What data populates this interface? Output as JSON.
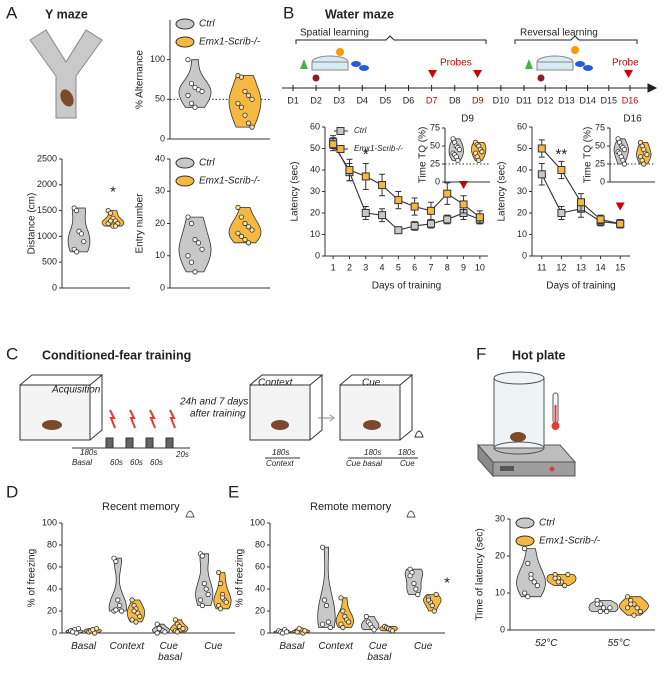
{
  "diagram": {
    "panel_labels": [
      "A",
      "B",
      "C",
      "D",
      "E",
      "F"
    ],
    "titles": {
      "y_maze": "Y maze",
      "water_maze": "Water maze",
      "fear": "Conditioned-fear training",
      "hot_plate": "Hot plate"
    },
    "timeline": {
      "spatial": "Spatial learning",
      "reversal": "Reversal learning",
      "probes": "Probes",
      "probe": "Probe",
      "days": [
        {
          "label": "D1"
        },
        {
          "label": "D2"
        },
        {
          "label": "D3"
        },
        {
          "label": "D4"
        },
        {
          "label": "D5"
        },
        {
          "label": "D6"
        },
        {
          "label": "D7",
          "color": "#d00000"
        },
        {
          "label": "D8"
        },
        {
          "label": "D9",
          "color": "#d00000"
        },
        {
          "label": "D10"
        },
        {
          "label": "D11"
        },
        {
          "label": "D12"
        },
        {
          "label": "D13"
        },
        {
          "label": "D14"
        },
        {
          "label": "D15"
        },
        {
          "label": "D16",
          "color": "#d00000"
        }
      ]
    },
    "fear": {
      "acquisition": "Acquisition",
      "basal_time": "180s",
      "basal": "Basal",
      "intervals": [
        "60s",
        "60s",
        "60s"
      ],
      "end": "20s",
      "delay": [
        "24h and 7 days",
        "after training"
      ],
      "context": "Context",
      "cue": "Cue",
      "context_time": "180s",
      "context_label": "Context",
      "cue_basal_time": "180s",
      "cue_time": "180s",
      "cue_basal": "Cue basal",
      "cue_label": "Cue"
    }
  },
  "chart_data": [
    {
      "type": "violin",
      "y_label": "% Alternance",
      "ylim": [
        0,
        150
      ],
      "yticks": [
        0,
        50,
        100
      ],
      "reference_line": 50,
      "legend": "top-left",
      "series": [
        {
          "name": "Ctrl",
          "color": "#c8c8c8",
          "values": [
            100,
            70,
            65,
            62,
            60,
            55,
            45,
            40
          ]
        },
        {
          "name": "Emx1-Scrib-/-",
          "color": "#f5b942",
          "values": [
            80,
            78,
            60,
            55,
            50,
            45,
            40,
            30,
            20,
            15
          ]
        }
      ]
    },
    {
      "type": "violin",
      "y_label": "Distance (cm)",
      "ylim": [
        0,
        2500
      ],
      "yticks": [
        0,
        500,
        1000,
        1500,
        2000,
        2500
      ],
      "annotations": [
        {
          "text": "*",
          "series": 1,
          "y": 1850
        }
      ],
      "series": [
        {
          "color": "#c8c8c8",
          "values": [
            1550,
            1500,
            1100,
            1050,
            900,
            750,
            700
          ]
        },
        {
          "color": "#f5b942",
          "values": [
            1500,
            1450,
            1350,
            1300,
            1250,
            1250,
            1300,
            1200,
            1200
          ]
        }
      ]
    },
    {
      "type": "violin",
      "y_label": "Entry number",
      "ylim": [
        0,
        40
      ],
      "yticks": [
        0,
        10,
        20,
        30,
        40
      ],
      "legend": "top-left",
      "series": [
        {
          "name": "Ctrl",
          "color": "#c8c8c8",
          "values": [
            22,
            20,
            15,
            14,
            12,
            10,
            8,
            5
          ]
        },
        {
          "name": "Emx1-Scrib-/-",
          "color": "#f5b942",
          "values": [
            25,
            22,
            20,
            19,
            18,
            17,
            16,
            15,
            14
          ]
        }
      ]
    },
    {
      "type": "line",
      "y_label": "Latency (sec)",
      "x_label": "Days of training",
      "x": [
        1,
        2,
        3,
        4,
        5,
        6,
        7,
        8,
        9,
        10
      ],
      "xlim": [
        0.5,
        10.5
      ],
      "xticks": [
        1,
        2,
        3,
        4,
        5,
        6,
        7,
        8,
        9,
        10
      ],
      "ylim": [
        0,
        60
      ],
      "yticks": [
        0,
        10,
        20,
        30,
        40,
        50,
        60
      ],
      "legend": "top-left",
      "annotations": [
        {
          "text": "*",
          "x": 3,
          "y": 47
        }
      ],
      "markers": [
        {
          "x": 9,
          "y": 33,
          "color": "#d00000"
        }
      ],
      "series": [
        {
          "name": "Ctrl",
          "color": "#c8c8c8",
          "values": [
            53,
            39,
            20,
            19,
            12,
            14,
            15,
            17,
            20,
            17
          ],
          "errors": [
            3,
            4,
            3,
            3,
            1,
            2,
            2,
            2,
            3,
            2
          ]
        },
        {
          "name": "Emx1-Scrib-/-",
          "color": "#f5b942",
          "values": [
            52,
            40,
            37,
            33,
            26,
            23,
            21,
            29,
            24,
            18
          ],
          "errors": [
            3,
            5,
            6,
            5,
            4,
            4,
            4,
            5,
            4,
            3
          ]
        }
      ]
    },
    {
      "type": "violin",
      "title": "D9",
      "y_label": "Time TQ (%)",
      "ylim": [
        0,
        75
      ],
      "yticks": [
        0,
        25,
        50,
        75
      ],
      "reference_line": 25,
      "series": [
        {
          "color": "#c8c8c8",
          "values": [
            60,
            55,
            50,
            48,
            45,
            40,
            38,
            35,
            30
          ]
        },
        {
          "color": "#f5b942",
          "values": [
            55,
            52,
            50,
            45,
            42,
            40,
            35,
            30
          ]
        }
      ]
    },
    {
      "type": "line",
      "y_label": "Latency (sec)",
      "x_label": "Days of training",
      "x": [
        11,
        12,
        13,
        14,
        15
      ],
      "xlim": [
        10.5,
        15.5
      ],
      "xticks": [
        11,
        12,
        13,
        14,
        15
      ],
      "ylim": [
        0,
        60
      ],
      "yticks": [
        0,
        10,
        20,
        30,
        40,
        50,
        60
      ],
      "annotations": [
        {
          "text": "**",
          "x": 12,
          "y": 47
        }
      ],
      "markers": [
        {
          "x": 15,
          "y": 23,
          "color": "#d00000"
        }
      ],
      "series": [
        {
          "color": "#c8c8c8",
          "values": [
            38,
            20,
            22,
            16,
            15
          ],
          "errors": [
            5,
            3,
            4,
            2,
            2
          ]
        },
        {
          "color": "#f5b942",
          "values": [
            50,
            40,
            25,
            17,
            15
          ],
          "errors": [
            4,
            4,
            4,
            2,
            2
          ]
        }
      ]
    },
    {
      "type": "violin",
      "title": "D16",
      "y_label": "Time TQ (%)",
      "ylim": [
        0,
        75
      ],
      "yticks": [
        0,
        25,
        50,
        75
      ],
      "reference_line": 25,
      "series": [
        {
          "color": "#c8c8c8",
          "values": [
            60,
            55,
            50,
            48,
            45,
            42,
            40,
            35,
            30,
            25
          ]
        },
        {
          "color": "#f5b942",
          "values": [
            55,
            50,
            45,
            40,
            38,
            35,
            30,
            25
          ]
        }
      ]
    },
    {
      "type": "violin",
      "title": "Recent memory",
      "y_label": "% of freezing",
      "ylim": [
        0,
        100
      ],
      "yticks": [
        0,
        20,
        40,
        60,
        80,
        100
      ],
      "categories": [
        "Basal",
        "Context",
        "Cue basal",
        "Cue"
      ],
      "series": [
        {
          "color": "#c8c8c8",
          "values": [
            [
              2,
              1,
              3,
              0,
              4,
              2,
              1
            ],
            [
              68,
              65,
              30,
              25,
              20,
              20,
              21
            ],
            [
              8,
              5,
              3,
              2,
              1,
              0,
              4
            ],
            [
              72,
              70,
              45,
              40,
              35,
              30,
              25
            ]
          ]
        },
        {
          "color": "#f5b942",
          "values": [
            [
              1,
              2,
              3,
              0,
              4,
              1,
              2,
              3
            ],
            [
              30,
              25,
              22,
              18,
              15,
              12,
              20,
              10
            ],
            [
              12,
              8,
              5,
              3,
              4,
              2,
              1,
              6
            ],
            [
              55,
              45,
              35,
              30,
              28,
              25,
              22,
              32
            ]
          ]
        }
      ]
    },
    {
      "type": "violin",
      "title": "Remote memory",
      "y_label": "% of freezing",
      "ylim": [
        0,
        100
      ],
      "yticks": [
        0,
        20,
        40,
        60,
        80,
        100
      ],
      "categories": [
        "Basal",
        "Context",
        "Cue basal",
        "Cue"
      ],
      "annotations": [
        {
          "text": "*",
          "category": 3,
          "series": 1,
          "y": 45
        }
      ],
      "series": [
        {
          "color": "#c8c8c8",
          "values": [
            [
              2,
              1,
              0,
              3,
              1
            ],
            [
              78,
              30,
              25,
              10,
              5,
              8
            ],
            [
              15,
              10,
              8,
              5,
              3
            ],
            [
              58,
              55,
              45,
              40,
              35,
              52
            ]
          ]
        },
        {
          "color": "#f5b942",
          "values": [
            [
              2,
              1,
              3,
              0,
              2,
              1,
              4
            ],
            [
              32,
              20,
              15,
              12,
              10,
              8,
              5
            ],
            [
              6,
              5,
              4,
              3,
              2
            ],
            [
              32,
              28,
              25,
              20,
              35,
              30
            ]
          ]
        }
      ]
    },
    {
      "type": "violin",
      "y_label": "Time of latency (sec)",
      "ylim": [
        0,
        30
      ],
      "yticks": [
        0,
        10,
        20,
        30
      ],
      "legend": "top-left",
      "categories": [
        "52°C",
        "55°C"
      ],
      "series": [
        {
          "name": "Ctrl",
          "color": "#c8c8c8",
          "values": [
            [
              22,
              18,
              15,
              13,
              12,
              10,
              9,
              14
            ],
            [
              8,
              7,
              6,
              5,
              6,
              7,
              5
            ]
          ]
        },
        {
          "name": "Emx1-Scrib-/-",
          "color": "#f5b942",
          "values": [
            [
              15,
              14,
              13,
              12,
              15,
              14,
              13
            ],
            [
              9,
              8,
              7,
              6,
              5,
              6,
              7,
              4
            ]
          ]
        }
      ]
    }
  ]
}
